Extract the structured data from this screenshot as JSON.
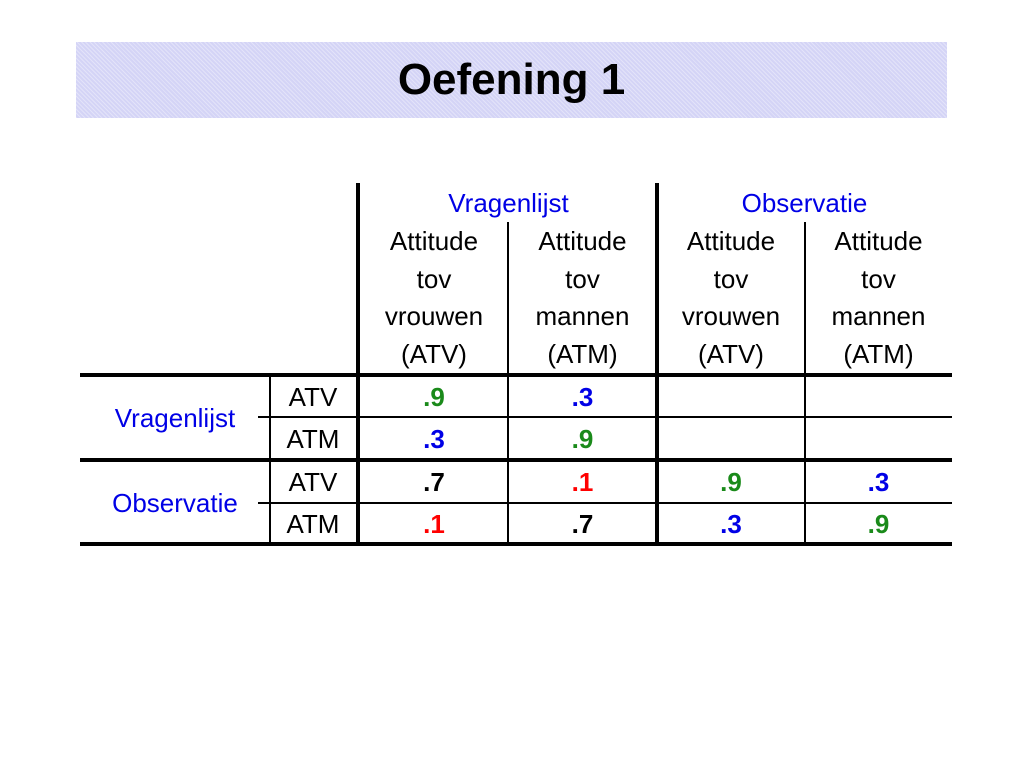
{
  "header": {
    "title": "Oefening 1"
  },
  "table": {
    "groups": [
      {
        "label": "Vragenlijst",
        "color": "#0000e6",
        "columns": [
          [
            "Attitude",
            "tov",
            "vrouwen",
            "(ATV)"
          ],
          [
            "Attitude",
            "tov",
            "mannen",
            "(ATM)"
          ]
        ]
      },
      {
        "label": "Observatie",
        "color": "#0000e6",
        "columns": [
          [
            "Attitude",
            "tov",
            "vrouwen",
            "(ATV)"
          ],
          [
            "Attitude",
            "tov",
            "mannen",
            "(ATM)"
          ]
        ]
      }
    ],
    "row_groups": [
      {
        "label": "Vragenlijst",
        "color": "#0000e6",
        "rows": [
          {
            "label": "ATV",
            "cells": [
              {
                "text": ".9",
                "color": "#1a8a1a"
              },
              {
                "text": ".3",
                "color": "#0000e6"
              },
              null,
              null
            ]
          },
          {
            "label": "ATM",
            "cells": [
              {
                "text": ".3",
                "color": "#0000e6"
              },
              {
                "text": ".9",
                "color": "#1a8a1a"
              },
              null,
              null
            ]
          }
        ]
      },
      {
        "label": "Observatie",
        "color": "#0000e6",
        "rows": [
          {
            "label": "ATV",
            "cells": [
              {
                "text": ".7",
                "color": "#000000"
              },
              {
                "text": ".1",
                "color": "#ff0000"
              },
              {
                "text": ".9",
                "color": "#1a8a1a"
              },
              {
                "text": ".3",
                "color": "#0000e6"
              }
            ]
          },
          {
            "label": "ATM",
            "cells": [
              {
                "text": ".1",
                "color": "#ff0000"
              },
              {
                "text": ".7",
                "color": "#000000"
              },
              {
                "text": ".3",
                "color": "#0000e6"
              },
              {
                "text": ".9",
                "color": "#1a8a1a"
              }
            ]
          }
        ]
      }
    ]
  }
}
